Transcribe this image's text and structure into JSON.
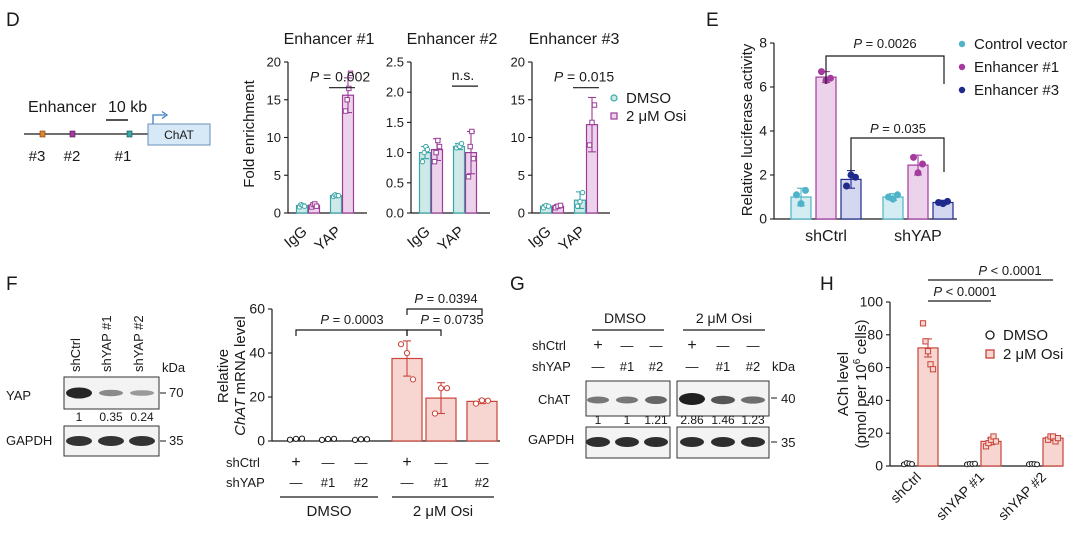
{
  "panel_letters": [
    "D",
    "E",
    "F",
    "G",
    "H"
  ],
  "colors": {
    "dmso_fill": "#cfe9e8",
    "dmso_stroke": "#3aa7a6",
    "osi_fill": "#ecd3eb",
    "osi_stroke": "#9b3c98",
    "ctrl": "#4fb3c9",
    "enh1": "#a43aa0",
    "enh3": "#1f2a8c",
    "f_fill": "#f7d6d1",
    "f_stroke": "#c9443a"
  },
  "panelD": {
    "schematic": {
      "title": "Enhancer",
      "scale": "10 kb",
      "gene": "ChAT",
      "sites": [
        "#3",
        "#2",
        "#1"
      ]
    },
    "legend": [
      "DMSO",
      "2 μM Osi"
    ],
    "ylabel": "Fold enrichment",
    "xcats": [
      "IgG",
      "YAP"
    ]
  },
  "panelE": {
    "pvals": [
      "P = 0.0026",
      "P = 0.035"
    ],
    "p_italic": "P",
    "ylabel": "Relative luciferase activity",
    "legend": [
      "Control vector",
      "Enhancer #1",
      "Enhancer #3"
    ]
  },
  "panelF": {
    "lanes": [
      "shCtrl",
      "shYAP #1",
      "shYAP #2"
    ],
    "kda": "kDa",
    "blot_rows": [
      {
        "name": "YAP",
        "kda": "70"
      },
      {
        "name": "GAPDH",
        "kda": "35"
      }
    ],
    "quant": [
      "1",
      "0.35",
      "0.24"
    ],
    "ylabel_top": "Relative",
    "ylabel_gene": "ChAT",
    "ylabel_rest": " mRNA level",
    "pvals": [
      "P = 0.0003",
      "P = 0.0394",
      "P = 0.0735"
    ],
    "rowlabels": [
      "shCtrl",
      "shYAP"
    ],
    "row_marks": [
      [
        "+",
        "—",
        "—",
        "+",
        "—",
        "—"
      ],
      [
        "—",
        "#1",
        "#2",
        "—",
        "#1",
        "#2"
      ]
    ],
    "groups": [
      "DMSO",
      "2 μM Osi"
    ]
  },
  "panelG": {
    "groups": [
      "DMSO",
      "2 μM Osi"
    ],
    "kda": "kDa",
    "rowlabels": [
      "shCtrl",
      "shYAP"
    ],
    "row_marks": [
      [
        "+",
        "—",
        "—",
        "+",
        "—",
        "—"
      ],
      [
        "—",
        "#1",
        "#2",
        "—",
        "#1",
        "#2"
      ]
    ],
    "blot_rows": [
      {
        "name": "ChAT",
        "kda": "40"
      },
      {
        "name": "GAPDH",
        "kda": "35"
      }
    ],
    "quant": [
      "1",
      "1",
      "1.21",
      "2.86",
      "1.46",
      "1.23"
    ]
  },
  "panelH": {
    "pvals": [
      "P < 0.0001",
      "P < 0.0001"
    ],
    "legend": [
      "DMSO",
      "2 μM Osi"
    ],
    "ylabel": "ACh level",
    "ylabel2_pre": "(pmol per 10",
    "ylabel2_sup": "6",
    "ylabel2_post": " cells)"
  },
  "chart_data": [
    {
      "id": "D1",
      "type": "bar",
      "title": "Enhancer  #1",
      "categories": [
        "IgG",
        "YAP"
      ],
      "series": [
        {
          "name": "DMSO",
          "values": [
            1.0,
            2.3
          ]
        },
        {
          "name": "2 μM Osi",
          "values": [
            1.0,
            15.6
          ]
        }
      ],
      "errors": [
        [
          0.2,
          0.2
        ],
        [
          0.2,
          2.3
        ]
      ],
      "points": [
        [
          [
            0.8,
            1.1,
            1.0,
            0.9
          ],
          [
            2.2,
            2.4,
            2.3,
            2.3
          ]
        ],
        [
          [
            0.8,
            1.1,
            1.2,
            0.9
          ],
          [
            13.5,
            15.0,
            16.5,
            18.5
          ]
        ]
      ],
      "ylim": [
        0,
        20
      ],
      "yticks": [
        0,
        5,
        10,
        15,
        20
      ],
      "annot": "P = 0.002",
      "ylabel": "Fold enrichment"
    },
    {
      "id": "D2",
      "type": "bar",
      "title": "Enhancer  #2",
      "categories": [
        "IgG",
        "YAP"
      ],
      "series": [
        {
          "name": "DMSO",
          "values": [
            1.0,
            1.1
          ]
        },
        {
          "name": "2 μM Osi",
          "values": [
            1.05,
            1.0
          ]
        }
      ],
      "errors": [
        [
          0.1,
          0.05
        ],
        [
          0.18,
          0.35
        ]
      ],
      "points": [
        [
          [
            0.85,
            1.0,
            1.1,
            1.05
          ],
          [
            1.08,
            1.12,
            1.1,
            1.15
          ]
        ],
        [
          [
            0.85,
            1.0,
            1.2,
            1.1
          ],
          [
            0.6,
            1.1,
            1.35,
            0.9
          ]
        ]
      ],
      "ylim": [
        0,
        2.5
      ],
      "yticks": [
        0,
        0.5,
        1.0,
        1.5,
        2.0,
        2.5
      ],
      "annot": "n.s."
    },
    {
      "id": "D3",
      "type": "bar",
      "title": "Enhancer  #3",
      "categories": [
        "IgG",
        "YAP"
      ],
      "series": [
        {
          "name": "DMSO",
          "values": [
            0.9,
            1.7
          ]
        },
        {
          "name": "2 μM Osi",
          "values": [
            0.9,
            11.7
          ]
        }
      ],
      "errors": [
        [
          0.2,
          1.1
        ],
        [
          0.2,
          3.6
        ]
      ],
      "points": [
        [
          [
            0.7,
            1.0,
            0.9
          ],
          [
            0.9,
            1.5,
            2.7
          ]
        ],
        [
          [
            0.7,
            0.9,
            1.0
          ],
          [
            9.0,
            12.0,
            14.3
          ]
        ]
      ],
      "ylim": [
        0,
        20
      ],
      "yticks": [
        0,
        5,
        10,
        15,
        20
      ],
      "annot": "P = 0.015"
    },
    {
      "id": "E",
      "type": "bar",
      "categories": [
        "shCtrl",
        "shYAP"
      ],
      "series": [
        {
          "name": "Control vector",
          "values": [
            1.0,
            1.0
          ]
        },
        {
          "name": "Enhancer #1",
          "values": [
            6.45,
            2.45
          ]
        },
        {
          "name": "Enhancer #3",
          "values": [
            1.8,
            0.75
          ]
        }
      ],
      "errors": [
        [
          0.4,
          0.15
        ],
        [
          0.25,
          0.45
        ],
        [
          0.4,
          0.1
        ]
      ],
      "points": [
        [
          [
            1.1,
            0.7,
            1.3
          ],
          [
            1.0,
            0.9,
            1.1
          ]
        ],
        [
          [
            6.7,
            6.3,
            6.4
          ],
          [
            2.8,
            2.1,
            2.5
          ]
        ],
        [
          [
            1.5,
            2.0,
            1.9
          ],
          [
            0.75,
            0.7,
            0.8
          ]
        ]
      ],
      "ylim": [
        0,
        8
      ],
      "yticks": [
        0,
        2,
        4,
        6,
        8
      ],
      "ylabel": "Relative luciferase activity"
    },
    {
      "id": "F",
      "type": "bar",
      "categories": [
        "DMSO shCtrl",
        "DMSO shYAP #1",
        "DMSO shYAP #2",
        "Osi shCtrl",
        "Osi shYAP #1",
        "Osi shYAP #2"
      ],
      "values": [
        0.9,
        0.8,
        0.7,
        37.5,
        19.5,
        18.0
      ],
      "errors": [
        0.3,
        0.4,
        0.3,
        8.0,
        7.0,
        1.0
      ],
      "points": [
        [
          0.6,
          1.0,
          1.1
        ],
        [
          0.5,
          0.9,
          1.0
        ],
        [
          0.5,
          0.8,
          0.8
        ],
        [
          44,
          40,
          28
        ],
        [
          12.5,
          24,
          24
        ],
        [
          17,
          18.5,
          18.3
        ]
      ],
      "ylim": [
        0,
        60
      ],
      "yticks": [
        0,
        20,
        40,
        60
      ]
    },
    {
      "id": "H",
      "type": "bar",
      "categories": [
        "shCtrl",
        "shYAP #1",
        "shYAP #2"
      ],
      "series": [
        {
          "name": "DMSO",
          "values": [
            1.5,
            1.2,
            1.2
          ]
        },
        {
          "name": "2 μM Osi",
          "values": [
            72,
            15,
            17
          ]
        }
      ],
      "errors": [
        [
          0.5,
          0.4,
          0.4
        ],
        [
          5.5,
          2,
          1.5
        ]
      ],
      "points": [
        [
          [
            1,
            1.8,
            1.5,
            1.2
          ],
          [
            1,
            1.3,
            1.2,
            1.4
          ],
          [
            1.1,
            1.3,
            1.2,
            1.0
          ]
        ],
        [
          [
            87,
            76,
            70,
            62,
            59
          ],
          [
            12,
            14,
            16,
            18,
            15
          ],
          [
            16,
            18,
            18,
            15,
            17
          ]
        ]
      ],
      "ylim": [
        0,
        100
      ],
      "yticks": [
        0,
        20,
        40,
        60,
        80,
        100
      ],
      "ylabel": "ACh level"
    }
  ]
}
